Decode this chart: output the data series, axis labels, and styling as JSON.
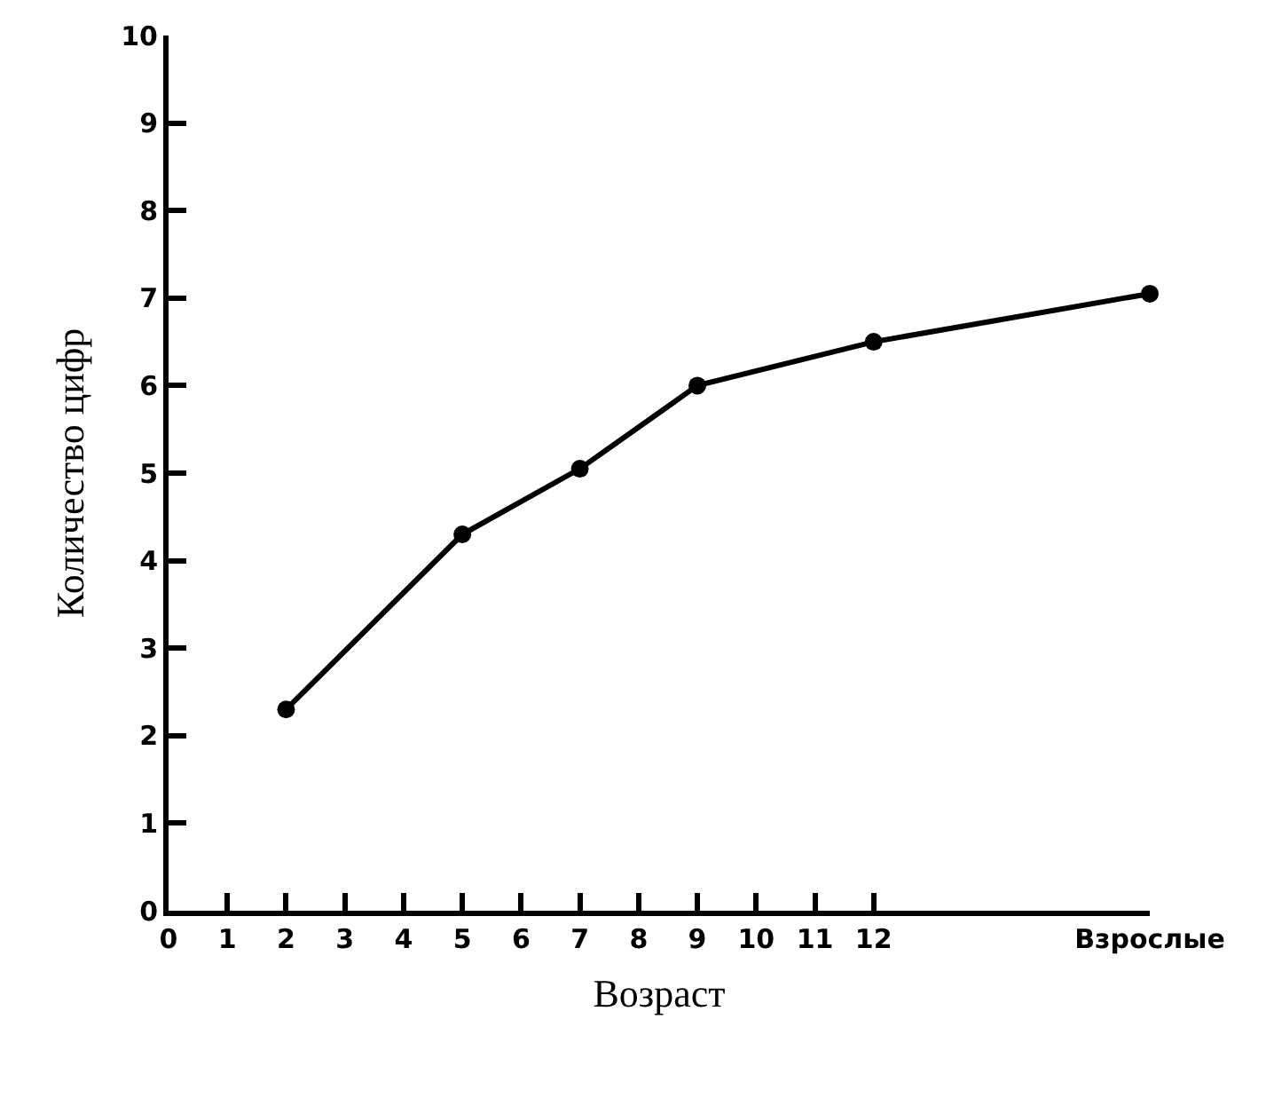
{
  "chart_data": {
    "type": "line",
    "xlabel": "Возраст",
    "ylabel": "Количество цифр",
    "x": [
      2,
      5,
      7,
      9,
      12,
      16.7
    ],
    "series": [
      {
        "color": "#000000",
        "values": [
          2.3,
          4.3,
          5.05,
          6.0,
          6.5,
          7.05
        ]
      }
    ],
    "xlim": [
      0,
      16.7
    ],
    "xticks": [
      0,
      1,
      2,
      3,
      4,
      5,
      6,
      7,
      8,
      9,
      10,
      11,
      12,
      {
        "value": 16.7,
        "label": "Взрослые"
      }
    ],
    "ylim": [
      0,
      10
    ],
    "yticks": [
      0,
      1,
      2,
      3,
      4,
      5,
      6,
      7,
      8,
      9,
      10
    ],
    "marker": "circle",
    "line_style": "solid"
  }
}
